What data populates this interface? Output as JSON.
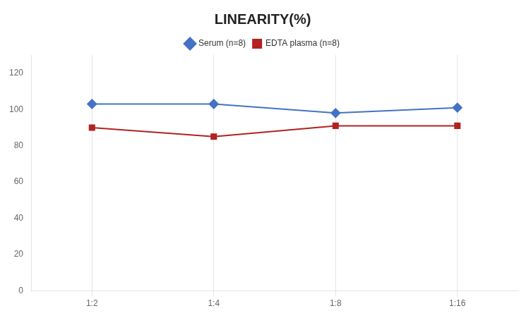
{
  "chart_data": {
    "type": "line",
    "title": "LINEARITY(%)",
    "categories": [
      "1:2",
      "1:4",
      "1:8",
      "1:16"
    ],
    "series": [
      {
        "name": "Serum (n=8)",
        "color": "#4472C4",
        "marker": "diamond",
        "values": [
          103,
          103,
          98,
          101
        ]
      },
      {
        "name": "EDTA plasma (n=8)",
        "color": "#B22222",
        "marker": "square",
        "values": [
          90,
          85,
          91,
          91
        ]
      }
    ],
    "ylim": [
      0,
      130
    ],
    "yticks": [
      0,
      20,
      40,
      60,
      80,
      100,
      120
    ],
    "grid": "x",
    "legend": "top"
  }
}
